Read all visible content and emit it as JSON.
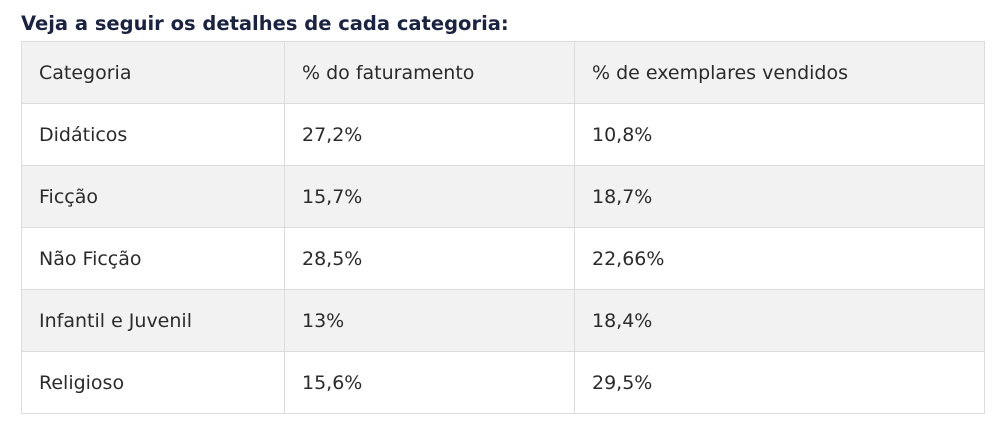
{
  "heading": "Veja a seguir os detalhes de cada categoria:",
  "table": {
    "headers": [
      "Categoria",
      "% do faturamento",
      "% de exemplares vendidos"
    ],
    "rows": [
      [
        "Didáticos",
        "27,2%",
        "10,8%"
      ],
      [
        "Ficção",
        "15,7%",
        "18,7%"
      ],
      [
        "Não Ficção",
        "28,5%",
        "22,66%"
      ],
      [
        "Infantil e Juvenil",
        "13%",
        "18,4%"
      ],
      [
        "Religioso",
        "15,6%",
        "29,5%"
      ]
    ]
  }
}
